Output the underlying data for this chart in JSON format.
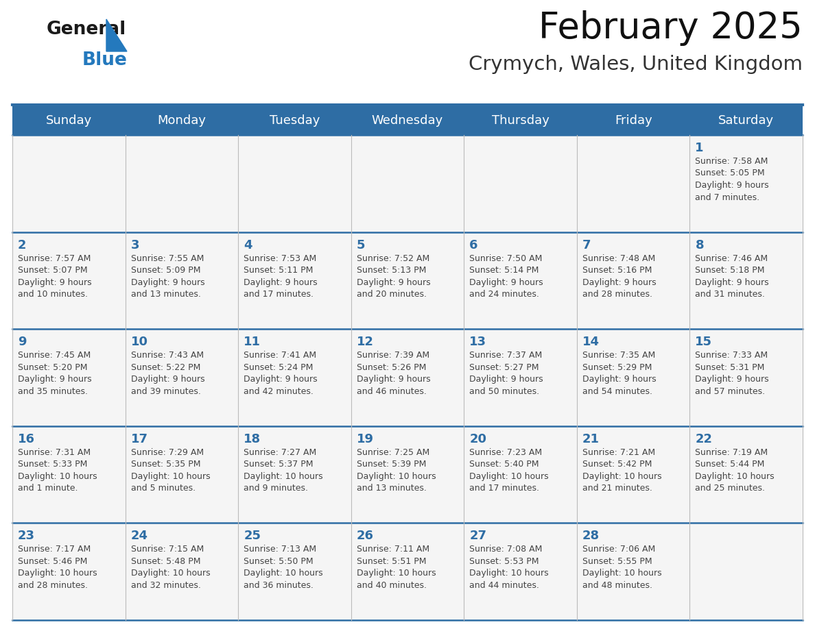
{
  "title": "February 2025",
  "subtitle": "Crymych, Wales, United Kingdom",
  "header_bg": "#2E6DA4",
  "header_text_color": "#FFFFFF",
  "cell_bg": "#F5F5F5",
  "day_number_color": "#2E6DA4",
  "text_color": "#444444",
  "line_color": "#2E6DA4",
  "days_of_week": [
    "Sunday",
    "Monday",
    "Tuesday",
    "Wednesday",
    "Thursday",
    "Friday",
    "Saturday"
  ],
  "weeks": [
    [
      {
        "day": null,
        "info": null
      },
      {
        "day": null,
        "info": null
      },
      {
        "day": null,
        "info": null
      },
      {
        "day": null,
        "info": null
      },
      {
        "day": null,
        "info": null
      },
      {
        "day": null,
        "info": null
      },
      {
        "day": 1,
        "info": "Sunrise: 7:58 AM\nSunset: 5:05 PM\nDaylight: 9 hours\nand 7 minutes."
      }
    ],
    [
      {
        "day": 2,
        "info": "Sunrise: 7:57 AM\nSunset: 5:07 PM\nDaylight: 9 hours\nand 10 minutes."
      },
      {
        "day": 3,
        "info": "Sunrise: 7:55 AM\nSunset: 5:09 PM\nDaylight: 9 hours\nand 13 minutes."
      },
      {
        "day": 4,
        "info": "Sunrise: 7:53 AM\nSunset: 5:11 PM\nDaylight: 9 hours\nand 17 minutes."
      },
      {
        "day": 5,
        "info": "Sunrise: 7:52 AM\nSunset: 5:13 PM\nDaylight: 9 hours\nand 20 minutes."
      },
      {
        "day": 6,
        "info": "Sunrise: 7:50 AM\nSunset: 5:14 PM\nDaylight: 9 hours\nand 24 minutes."
      },
      {
        "day": 7,
        "info": "Sunrise: 7:48 AM\nSunset: 5:16 PM\nDaylight: 9 hours\nand 28 minutes."
      },
      {
        "day": 8,
        "info": "Sunrise: 7:46 AM\nSunset: 5:18 PM\nDaylight: 9 hours\nand 31 minutes."
      }
    ],
    [
      {
        "day": 9,
        "info": "Sunrise: 7:45 AM\nSunset: 5:20 PM\nDaylight: 9 hours\nand 35 minutes."
      },
      {
        "day": 10,
        "info": "Sunrise: 7:43 AM\nSunset: 5:22 PM\nDaylight: 9 hours\nand 39 minutes."
      },
      {
        "day": 11,
        "info": "Sunrise: 7:41 AM\nSunset: 5:24 PM\nDaylight: 9 hours\nand 42 minutes."
      },
      {
        "day": 12,
        "info": "Sunrise: 7:39 AM\nSunset: 5:26 PM\nDaylight: 9 hours\nand 46 minutes."
      },
      {
        "day": 13,
        "info": "Sunrise: 7:37 AM\nSunset: 5:27 PM\nDaylight: 9 hours\nand 50 minutes."
      },
      {
        "day": 14,
        "info": "Sunrise: 7:35 AM\nSunset: 5:29 PM\nDaylight: 9 hours\nand 54 minutes."
      },
      {
        "day": 15,
        "info": "Sunrise: 7:33 AM\nSunset: 5:31 PM\nDaylight: 9 hours\nand 57 minutes."
      }
    ],
    [
      {
        "day": 16,
        "info": "Sunrise: 7:31 AM\nSunset: 5:33 PM\nDaylight: 10 hours\nand 1 minute."
      },
      {
        "day": 17,
        "info": "Sunrise: 7:29 AM\nSunset: 5:35 PM\nDaylight: 10 hours\nand 5 minutes."
      },
      {
        "day": 18,
        "info": "Sunrise: 7:27 AM\nSunset: 5:37 PM\nDaylight: 10 hours\nand 9 minutes."
      },
      {
        "day": 19,
        "info": "Sunrise: 7:25 AM\nSunset: 5:39 PM\nDaylight: 10 hours\nand 13 minutes."
      },
      {
        "day": 20,
        "info": "Sunrise: 7:23 AM\nSunset: 5:40 PM\nDaylight: 10 hours\nand 17 minutes."
      },
      {
        "day": 21,
        "info": "Sunrise: 7:21 AM\nSunset: 5:42 PM\nDaylight: 10 hours\nand 21 minutes."
      },
      {
        "day": 22,
        "info": "Sunrise: 7:19 AM\nSunset: 5:44 PM\nDaylight: 10 hours\nand 25 minutes."
      }
    ],
    [
      {
        "day": 23,
        "info": "Sunrise: 7:17 AM\nSunset: 5:46 PM\nDaylight: 10 hours\nand 28 minutes."
      },
      {
        "day": 24,
        "info": "Sunrise: 7:15 AM\nSunset: 5:48 PM\nDaylight: 10 hours\nand 32 minutes."
      },
      {
        "day": 25,
        "info": "Sunrise: 7:13 AM\nSunset: 5:50 PM\nDaylight: 10 hours\nand 36 minutes."
      },
      {
        "day": 26,
        "info": "Sunrise: 7:11 AM\nSunset: 5:51 PM\nDaylight: 10 hours\nand 40 minutes."
      },
      {
        "day": 27,
        "info": "Sunrise: 7:08 AM\nSunset: 5:53 PM\nDaylight: 10 hours\nand 44 minutes."
      },
      {
        "day": 28,
        "info": "Sunrise: 7:06 AM\nSunset: 5:55 PM\nDaylight: 10 hours\nand 48 minutes."
      },
      {
        "day": null,
        "info": null
      }
    ]
  ],
  "logo_color_general": "#1a1a1a",
  "logo_color_blue": "#2479BD",
  "title_fontsize": 38,
  "subtitle_fontsize": 21,
  "header_fontsize": 13,
  "day_number_fontsize": 13,
  "cell_text_fontsize": 9
}
